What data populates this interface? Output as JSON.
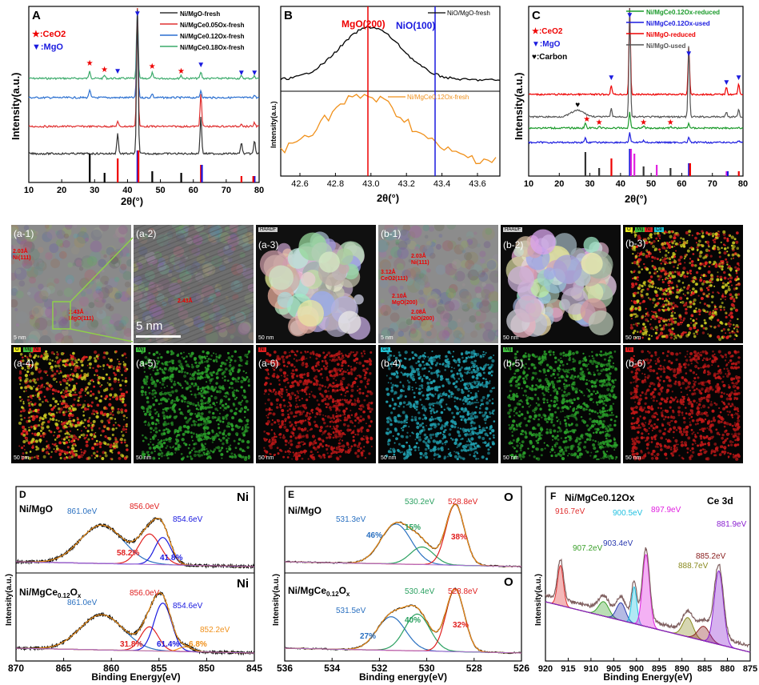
{
  "panelA": {
    "letter": "A",
    "ylabel": "Intensity(a.u.)",
    "xlabel": "2θ(°)",
    "xticks": [
      "10",
      "20",
      "30",
      "40",
      "50",
      "60",
      "70",
      "80"
    ],
    "legend": [
      {
        "text": "Ni/MgO-fresh",
        "color": "#333333"
      },
      {
        "text": "Ni/MgCe0.05Ox-fresh",
        "color": "#e03030"
      },
      {
        "text": "Ni/MgCe0.12Ox-fresh",
        "color": "#2a6fd0"
      },
      {
        "text": "Ni/MgCe0.18Ox-fresh",
        "color": "#3aaa6a"
      }
    ],
    "markers": [
      {
        "symbol": "★",
        "text": ":CeO2",
        "color": "#e00"
      },
      {
        "symbol": "▼",
        "text": ":MgO",
        "color": "#1a1adf"
      }
    ]
  },
  "panelB": {
    "letter": "B",
    "ylabel": "Intensity(a.u.)",
    "xlabel": "2θ(°)",
    "xticks": [
      "42.6",
      "42.8",
      "43.0",
      "43.2",
      "43.4",
      "43.6"
    ],
    "line1": {
      "text": "MgO(200)",
      "color": "#e00"
    },
    "line2": {
      "text": "NiO(100)",
      "color": "#1a1adf"
    },
    "legend1": "NiO/MgO-fresh",
    "legend2": "Ni/MgCe0.12Ox-fresh"
  },
  "panelC": {
    "letter": "C",
    "ylabel": "Intensity(a.u.)",
    "xlabel": "2θ(°)",
    "xticks": [
      "10",
      "20",
      "30",
      "40",
      "50",
      "60",
      "70",
      "80"
    ],
    "legend": [
      {
        "text": "Ni/MgCe0.12Ox-reduced",
        "color": "#1a9a2a"
      },
      {
        "text": "Ni/MgCe0.12Ox-used",
        "color": "#1a1adf"
      },
      {
        "text": "Ni/MgO-reduced",
        "color": "#e00"
      },
      {
        "text": "Ni/MgO-used",
        "color": "#555555"
      }
    ],
    "markers": [
      {
        "symbol": "★",
        "text": ":CeO2",
        "color": "#e00"
      },
      {
        "symbol": "▼",
        "text": ":MgO",
        "color": "#1a1adf"
      },
      {
        "symbol": "♥",
        "text": ":Carbon",
        "color": "#000"
      }
    ]
  },
  "micro": [
    {
      "label": "(a-1)",
      "scale": "5 nm",
      "bg": "#8a8a8a",
      "labelcolor": "#fff"
    },
    {
      "label": "(a-2)",
      "scale": "5 nm",
      "bg": "#6e6e6e",
      "labelcolor": "#fff"
    },
    {
      "label": "(a-3)",
      "scale": "50 nm",
      "bg": "#101010",
      "labelcolor": "#fff",
      "tag": "HAADF"
    },
    {
      "label": "(b-1)",
      "scale": "5 nm",
      "bg": "#8c8c8c",
      "labelcolor": "#fff"
    },
    {
      "label": "(b-2)",
      "scale": "50 nm",
      "bg": "#0c0c0c",
      "labelcolor": "#fff",
      "tag": "HAADF"
    },
    {
      "label": "(b-3)",
      "scale": "50 nm",
      "bg": "#050505",
      "labelcolor": "#fff"
    },
    {
      "label": "(a-4)",
      "scale": "50 nm",
      "bg": "#050505",
      "labelcolor": "#fff"
    },
    {
      "label": "(a-5)",
      "scale": "50 nm",
      "bg": "#050505",
      "labelcolor": "#fff"
    },
    {
      "label": "(a-6)",
      "scale": "50 nm",
      "bg": "#050505",
      "labelcolor": "#fff"
    },
    {
      "label": "(b-4)",
      "scale": "50 nm",
      "bg": "#050505",
      "labelcolor": "#fff"
    },
    {
      "label": "(b-5)",
      "scale": "50 nm",
      "bg": "#050505",
      "labelcolor": "#fff"
    },
    {
      "label": "(b-6)",
      "scale": "50 nm",
      "bg": "#050505",
      "labelcolor": "#fff"
    }
  ],
  "micro_annotations": {
    "a1_top": "2.03Å\nNi(111)",
    "a1_bottom": "2.43Å\nMgO(111)",
    "a2_scale": "5 nm",
    "a2_inner": "2.43Å",
    "b1_1": "2.03Å\nNi(111)",
    "b1_2": "3.12Å\nCeO2(111)",
    "b1_3": "2.10Å\nMgO(200)",
    "b1_4": "2.08Å\nNiO(200)",
    "el_a4": [
      "O",
      "Mg",
      "Ni"
    ],
    "el_a5": [
      "Mg"
    ],
    "el_a6": [
      "Ni"
    ],
    "el_b3": [
      "O",
      "Mg",
      "Ni",
      "Ce"
    ],
    "el_b4": [
      "Ce"
    ],
    "el_b5": [
      "Mg"
    ],
    "el_b6": [
      "Ni"
    ]
  },
  "panelD": {
    "letter": "D",
    "element1": "Ni",
    "element2": "Ni",
    "sample1": "Ni/MgO",
    "sample2": "Ni/MgCe0.12Ox",
    "ylabel": "Intensity(a.u.)",
    "xlabel": "Binding Energy(eV)",
    "xticks": [
      "870",
      "865",
      "860",
      "855",
      "850",
      "845"
    ],
    "top": {
      "p861": "861.0eV",
      "p856": "856.0eV",
      "p854": "854.6eV",
      "pct1": "58.2%",
      "pct2": "41.8%"
    },
    "bottom": {
      "p861": "861.0eV",
      "p856": "856.0eV",
      "p854": "854.6eV",
      "p852": "852.2eV",
      "pct1": "31.8%",
      "pct2": "61.4%",
      "pct3": "6.8%"
    }
  },
  "panelE": {
    "letter": "E",
    "element1": "O",
    "element2": "O",
    "sample1": "Ni/MgO",
    "sample2": "Ni/MgCe0.12Ox",
    "ylabel": "Intensity(a.u.)",
    "xlabel": "Binding energy(eV)",
    "xticks": [
      "536",
      "534",
      "532",
      "530",
      "528",
      "526"
    ],
    "top": {
      "p1": "531.3eV",
      "p2": "530.2eV",
      "p3": "528.8eV",
      "pct1": "46%",
      "pct2": "15%",
      "pct3": "38%"
    },
    "bottom": {
      "p1": "531.5eV",
      "p2": "530.4eV",
      "p3": "528.8eV",
      "pct1": "27%",
      "pct2": "40%",
      "pct3": "32%"
    }
  },
  "panelF": {
    "letter": "F",
    "title": "Ni/MgCe0.12Ox",
    "region": "Ce 3d",
    "ylabel": "Intensity(a.u.)",
    "xlabel": "Binding Energy(eV)",
    "xticks": [
      "920",
      "915",
      "910",
      "905",
      "900",
      "895",
      "890",
      "885",
      "880",
      "875"
    ],
    "peaks": [
      {
        "text": "916.7eV",
        "color": "#e03030"
      },
      {
        "text": "907.2eV",
        "color": "#3aa02a"
      },
      {
        "text": "903.4eV",
        "color": "#2a3ab0"
      },
      {
        "text": "900.5eV",
        "color": "#20c0e0"
      },
      {
        "text": "897.9eV",
        "color": "#e020e0"
      },
      {
        "text": "888.7eV",
        "color": "#8a8a20"
      },
      {
        "text": "885.2eV",
        "color": "#8a2020"
      },
      {
        "text": "881.9eV",
        "color": "#8a20d0"
      }
    ]
  }
}
